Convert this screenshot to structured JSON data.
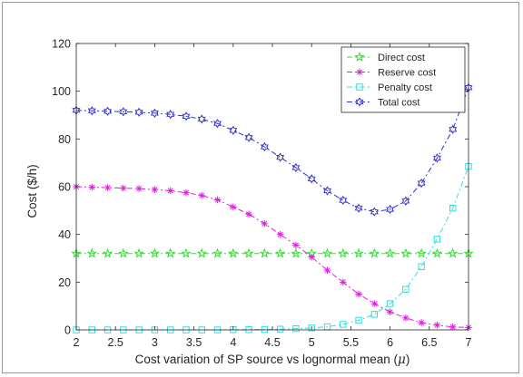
{
  "chart_data": {
    "type": "line",
    "title": "",
    "xlabel": "Cost variation of SP source vs lognormal mean (μ)",
    "xlabel_main": "Cost variation of SP source vs lognormal mean",
    "xlabel_symbol": "μ",
    "ylabel": "Cost ($/h)",
    "xlim": [
      2,
      7
    ],
    "ylim": [
      0,
      120
    ],
    "xticks": [
      2,
      2.5,
      3,
      3.5,
      4,
      4.5,
      5,
      5.5,
      6,
      6.5,
      7
    ],
    "xtick_labels": [
      "2",
      "2.5",
      "3",
      "3.5",
      "4",
      "4.5",
      "5",
      "5.5",
      "6",
      "6.5",
      "7"
    ],
    "yticks": [
      0,
      20,
      40,
      60,
      80,
      100,
      120
    ],
    "ytick_labels": [
      "0",
      "20",
      "40",
      "60",
      "80",
      "100",
      "120"
    ],
    "grid": false,
    "legend_position": "top-right",
    "x": [
      2.0,
      2.2,
      2.4,
      2.6,
      2.8,
      3.0,
      3.2,
      3.4,
      3.6,
      3.8,
      4.0,
      4.2,
      4.4,
      4.6,
      4.8,
      5.0,
      5.2,
      5.4,
      5.6,
      5.8,
      6.0,
      6.2,
      6.4,
      6.6,
      6.8,
      7.0
    ],
    "series": [
      {
        "name": "Direct cost",
        "color": "#33dd33",
        "marker": "pentagram",
        "dash": "6,3,2,3",
        "values": [
          32,
          32,
          32,
          32,
          32,
          32,
          32,
          32,
          32,
          32,
          32,
          32,
          32,
          32,
          32,
          32,
          32,
          32,
          32,
          32,
          32,
          32,
          32,
          32,
          32,
          32
        ]
      },
      {
        "name": "Reserve cost",
        "color": "#e020e0",
        "marker": "asterisk",
        "dash": "6,3,2,3",
        "values": [
          60,
          59.8,
          59.6,
          59.4,
          59.2,
          58.8,
          58.3,
          57.5,
          56.3,
          54.5,
          51.5,
          48.5,
          44.5,
          40,
          35.5,
          30.5,
          25,
          20,
          15,
          11,
          7.5,
          5,
          3,
          2,
          1.2,
          1
        ]
      },
      {
        "name": "Penalty cost",
        "color": "#33dddd",
        "marker": "square",
        "dash": "6,3,2,3",
        "values": [
          0,
          0,
          0,
          0,
          0,
          0,
          0,
          0,
          0,
          0,
          0.1,
          0.1,
          0.2,
          0.3,
          0.5,
          0.8,
          1.3,
          2.3,
          4,
          6.5,
          11,
          17,
          26.5,
          38,
          51,
          68.5
        ]
      },
      {
        "name": "Total cost",
        "color": "#3333cc",
        "marker": "hexagram",
        "dash": "6,3,2,3",
        "values": [
          92,
          91.8,
          91.6,
          91.4,
          91.2,
          90.8,
          90.3,
          89.5,
          88.3,
          86.5,
          83.6,
          80.6,
          76.7,
          72.3,
          68,
          63.3,
          58.3,
          54.3,
          51,
          49.5,
          50.5,
          54,
          61.5,
          72,
          84,
          101.5
        ]
      }
    ]
  }
}
